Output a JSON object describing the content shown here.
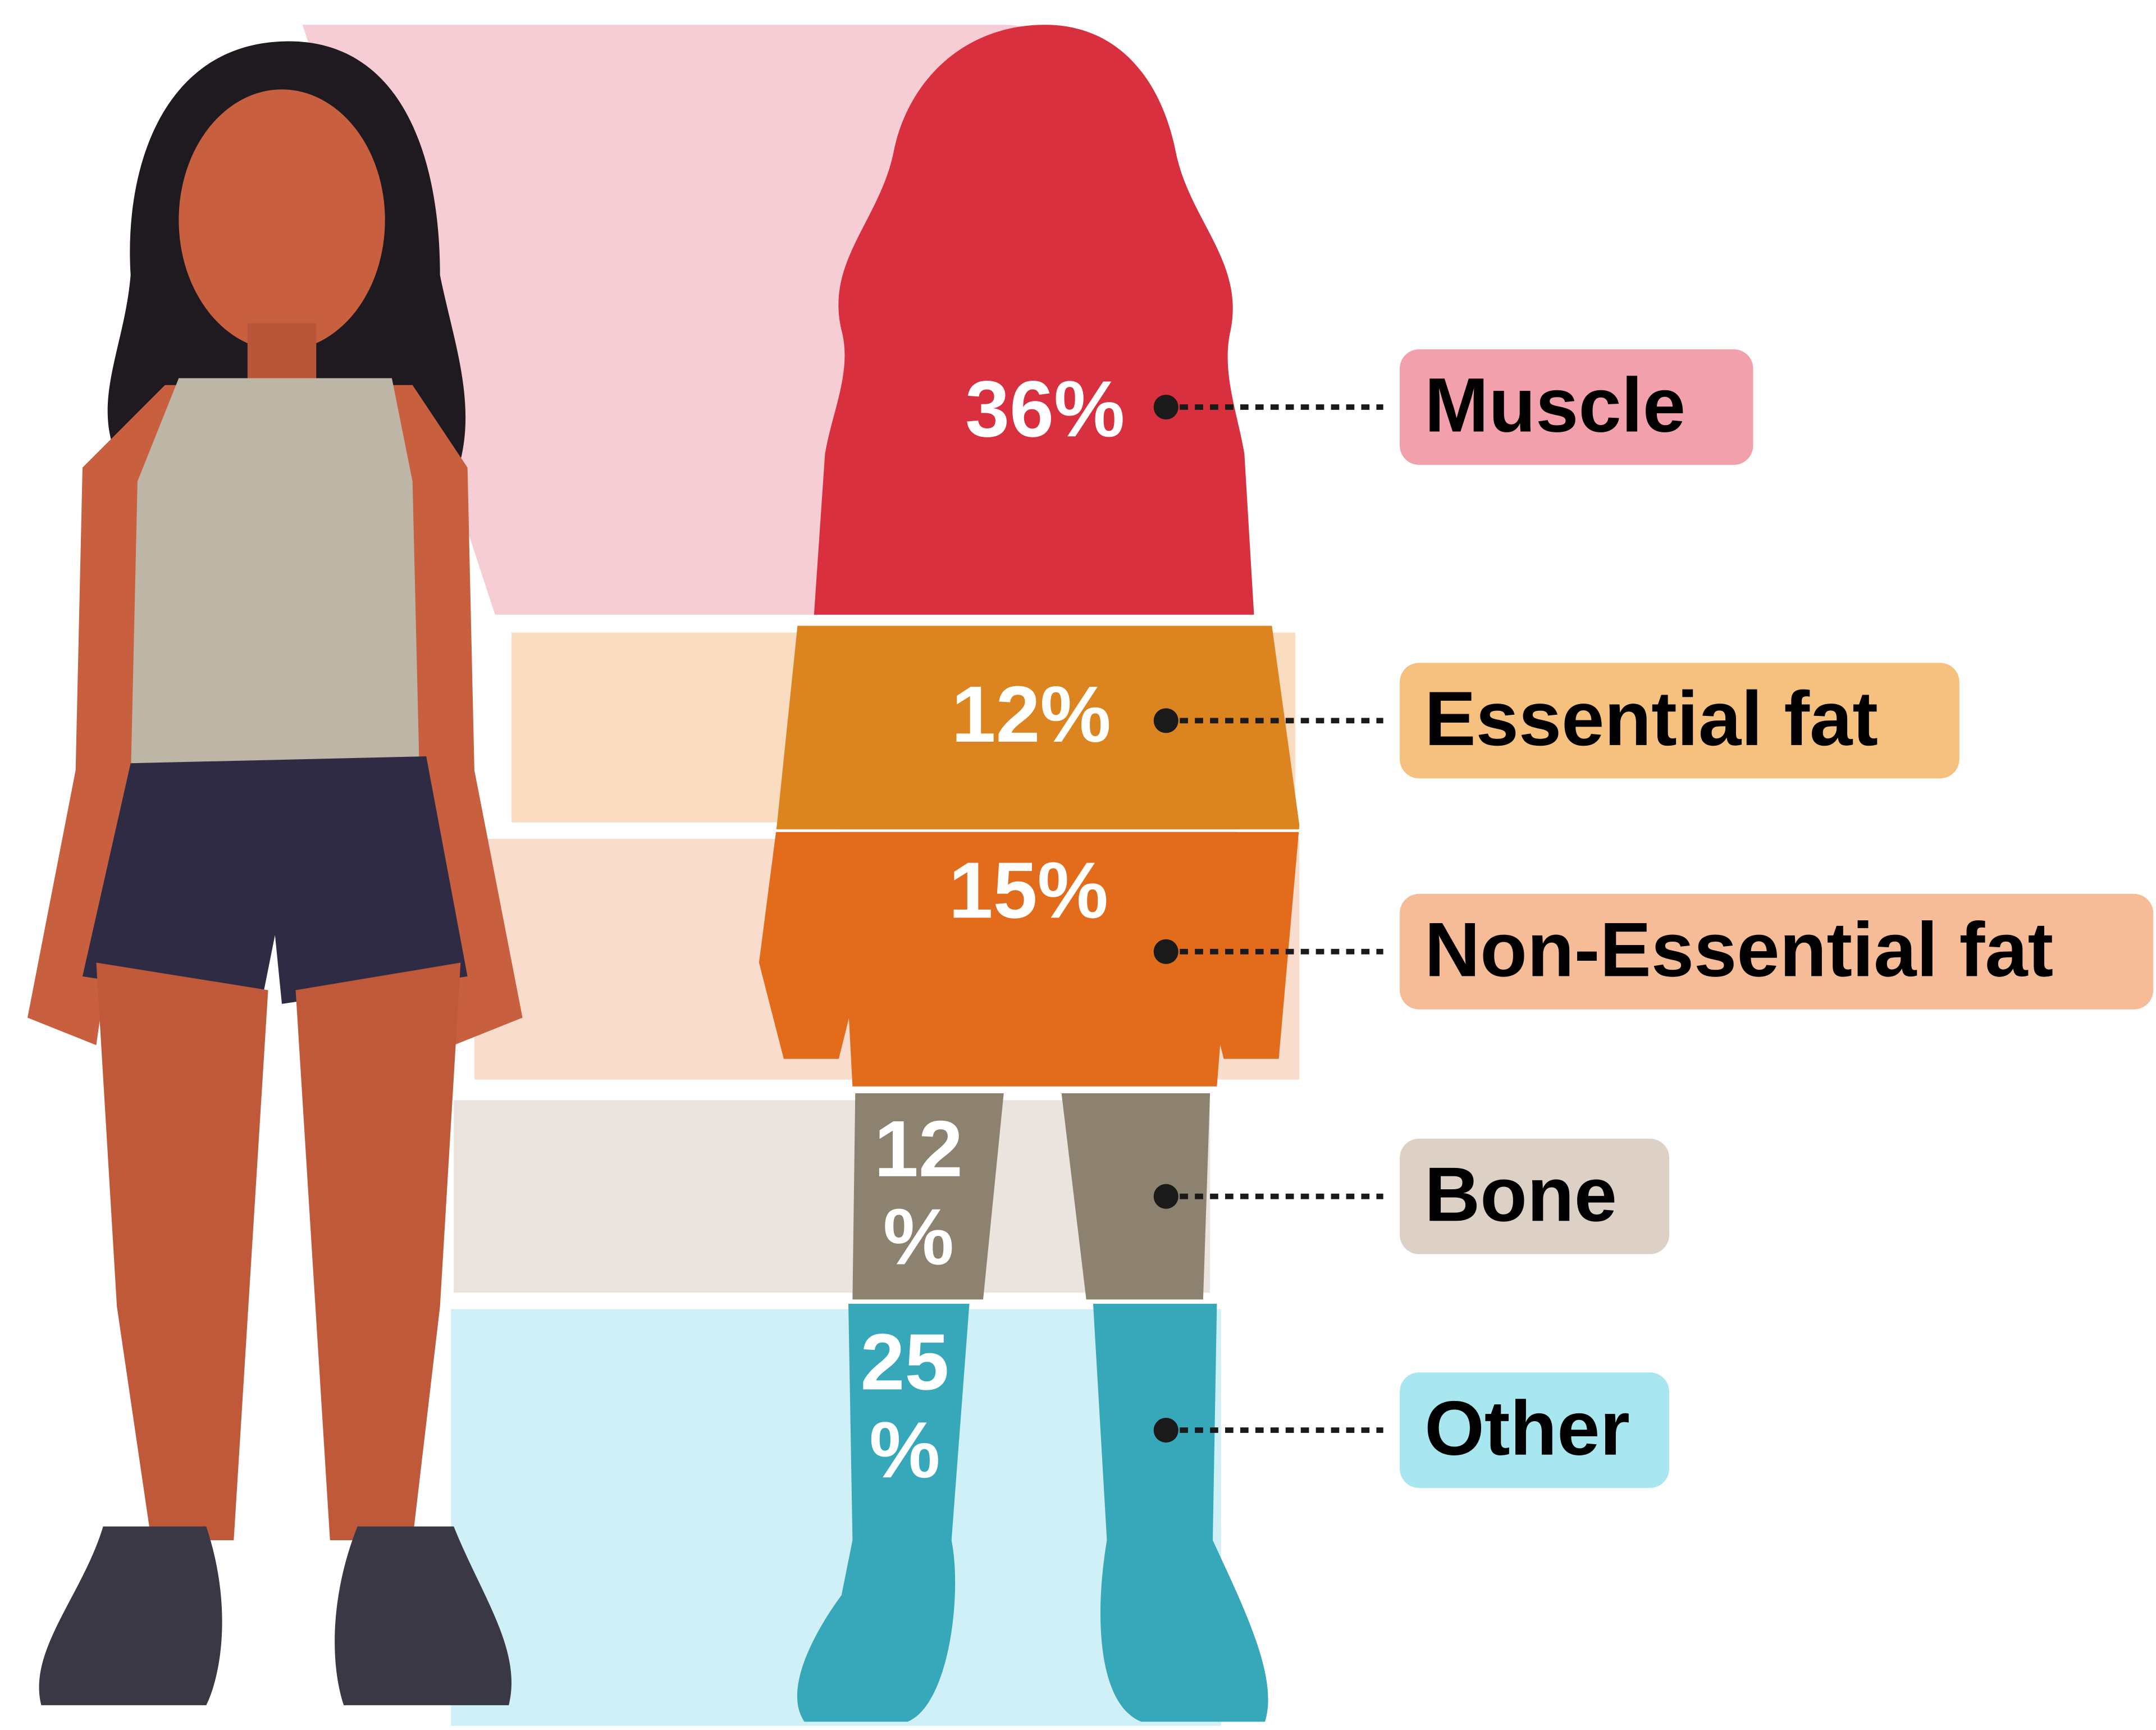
{
  "segments": [
    {
      "label": "Muscle",
      "percent": [
        "36%"
      ]
    },
    {
      "label": "Essential fat",
      "percent": [
        "12%"
      ]
    },
    {
      "label": "Non-Essential fat",
      "percent": [
        "15%"
      ]
    },
    {
      "label": "Bone",
      "percent": [
        "12",
        "%"
      ]
    },
    {
      "label": "Other",
      "percent": [
        "25",
        "%"
      ]
    }
  ]
}
